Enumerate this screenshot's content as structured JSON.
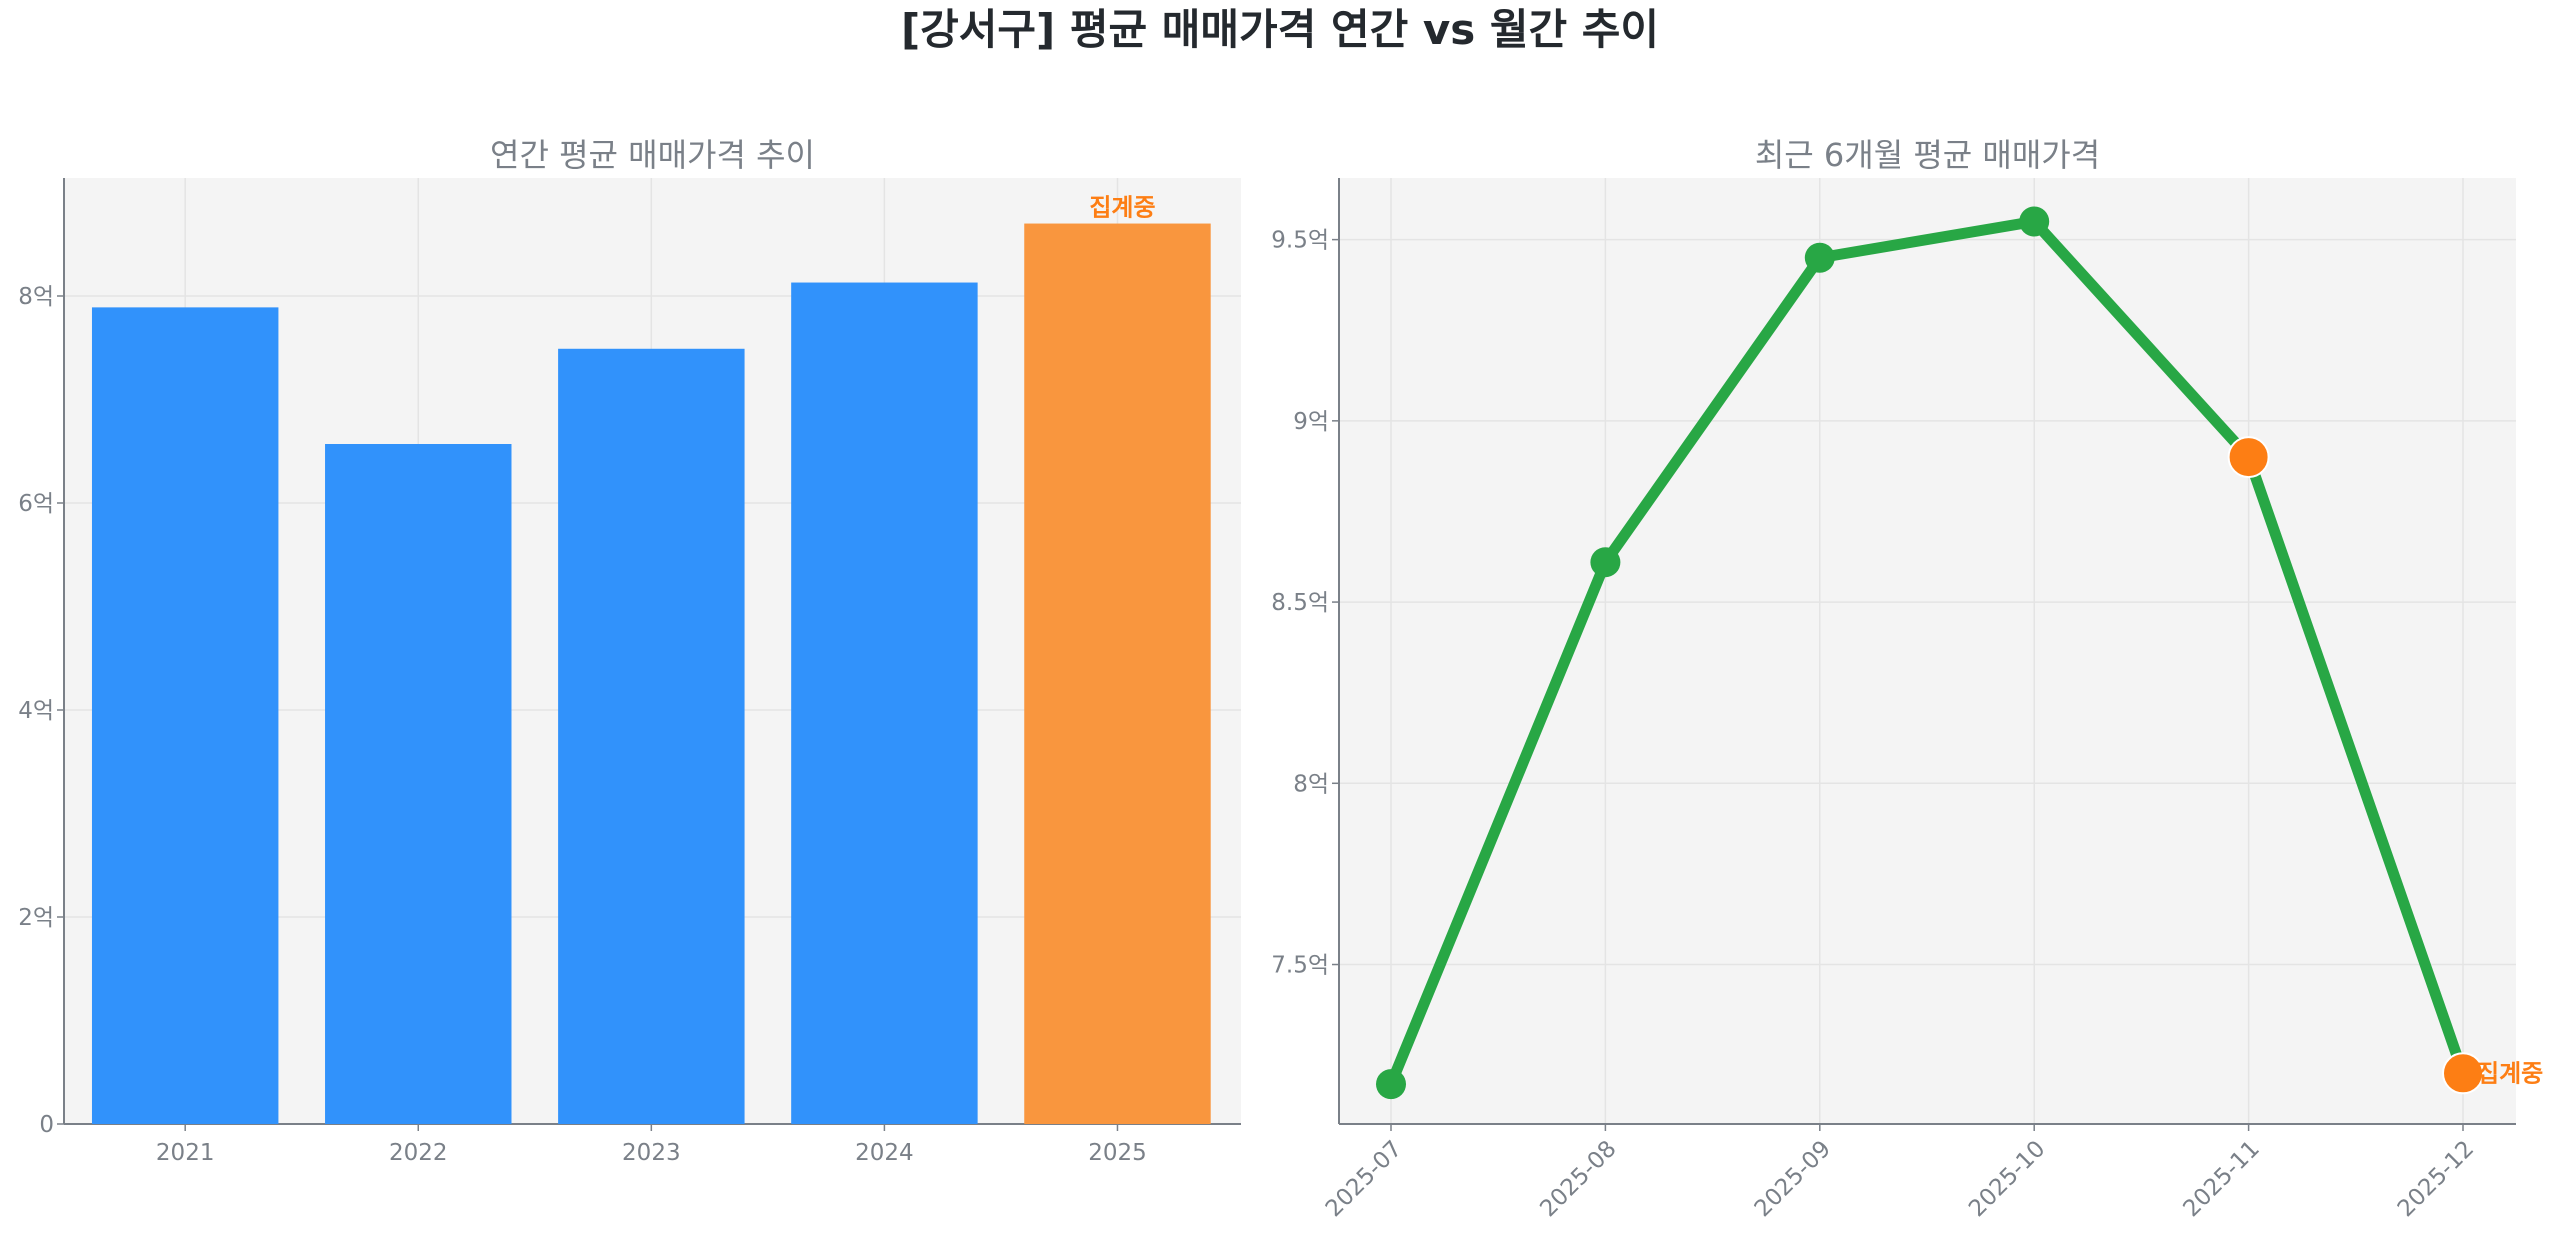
{
  "title": "[강서구] 평균 매매가격 연간 vs 월간 추이",
  "colors": {
    "bar": "#3192fb",
    "bar_pending": "#f9963e",
    "line": "#28a745",
    "pending_marker": "#fd7e14",
    "pending_text": "#fd7e14",
    "plot_bg": "#f4f4f4"
  },
  "chart_data": [
    {
      "type": "bar",
      "title": "연간 평균 매매가격 추이",
      "categories": [
        "2021",
        "2022",
        "2023",
        "2024",
        "2025"
      ],
      "values": [
        7.89,
        6.57,
        7.49,
        8.13,
        8.7
      ],
      "unit": "억",
      "pending": [
        false,
        false,
        false,
        false,
        true
      ],
      "annotation": "집계중",
      "yticks": [
        0,
        2,
        4,
        6,
        8
      ],
      "ytick_labels": [
        "0",
        "2억",
        "4억",
        "6억",
        "8억"
      ],
      "ylim": [
        0,
        9.14
      ],
      "grid": true
    },
    {
      "type": "line",
      "title": "최근 6개월 평균 매매가격",
      "categories": [
        "2025-07",
        "2025-08",
        "2025-09",
        "2025-10",
        "2025-11",
        "2025-12"
      ],
      "values": [
        7.17,
        8.61,
        9.45,
        9.55,
        8.9,
        7.2
      ],
      "unit": "억",
      "pending": [
        false,
        false,
        false,
        false,
        true,
        true
      ],
      "annotation": "집계중",
      "yticks": [
        7.5,
        8,
        8.5,
        9,
        9.5
      ],
      "ytick_labels": [
        "7.5억",
        "8억",
        "8.5억",
        "9억",
        "9.5억"
      ],
      "ylim": [
        7.06,
        9.67
      ],
      "grid": true
    }
  ]
}
